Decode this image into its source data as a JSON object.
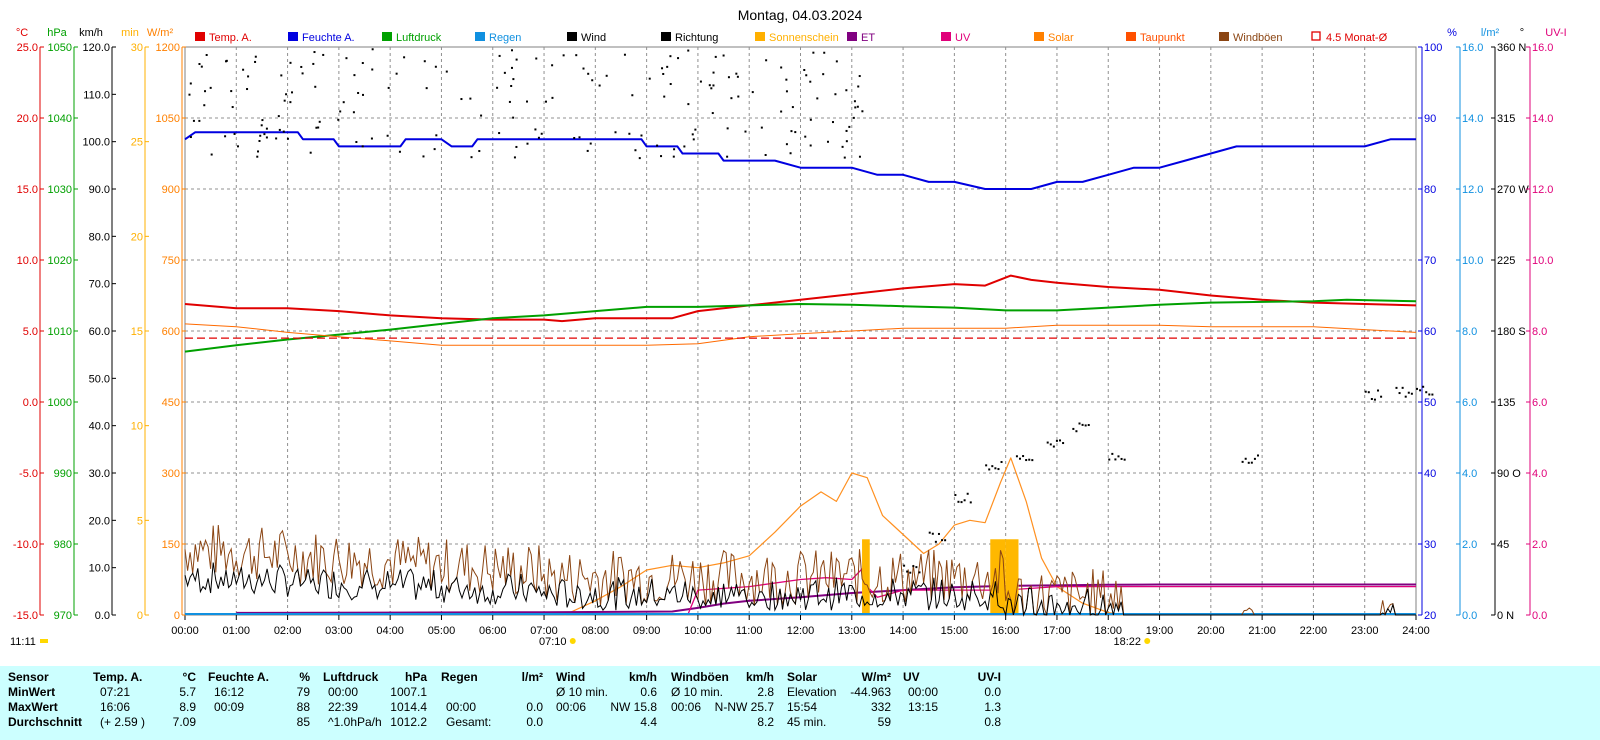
{
  "chart_data": {
    "type": "line",
    "title": "Montag, 04.03.2024",
    "legend": [
      {
        "name": "Temp. A.",
        "color": "#e00000",
        "marker": "box"
      },
      {
        "name": "Feuchte A.",
        "color": "#0000e0",
        "marker": "box"
      },
      {
        "name": "Luftdruck",
        "color": "#00a000",
        "marker": "box"
      },
      {
        "name": "Regen",
        "color": "#1090e0",
        "marker": "box"
      },
      {
        "name": "Wind",
        "color": "#000000",
        "marker": "box"
      },
      {
        "name": "Richtung",
        "color": "#000000",
        "marker": "box"
      },
      {
        "name": "Sonnenschein",
        "color": "#ffb000",
        "marker": "box"
      },
      {
        "name": "ET",
        "color": "#800080",
        "marker": "box"
      },
      {
        "name": "UV",
        "color": "#e0007a",
        "marker": "box"
      },
      {
        "name": "Solar",
        "color": "#ff8000",
        "marker": "box"
      },
      {
        "name": "Taupunkt",
        "color": "#ff5000",
        "marker": "box"
      },
      {
        "name": "Windböen",
        "color": "#8b4513",
        "marker": "box"
      },
      {
        "name": "4.5 Monat-Ø",
        "color": "#e00000",
        "marker": "open"
      }
    ],
    "x_ticks": [
      "00:00",
      "01:00",
      "02:00",
      "03:00",
      "04:00",
      "05:00",
      "06:00",
      "07:00",
      "08:00",
      "09:00",
      "10:00",
      "11:00",
      "12:00",
      "13:00",
      "14:00",
      "15:00",
      "16:00",
      "17:00",
      "18:00",
      "19:00",
      "20:00",
      "21:00",
      "22:00",
      "23:00",
      "24:00"
    ],
    "sunrise_label": "07:10",
    "sunset_label": "18:22",
    "left_corner_label": "11:11",
    "left_axes": [
      {
        "unit": "°C",
        "color": "#e00000",
        "ticks": [
          "25.0",
          "20.0",
          "15.0",
          "10.0",
          "5.0",
          "0.0",
          "-5.0",
          "-10.0",
          "-15.0"
        ]
      },
      {
        "unit": "hPa",
        "color": "#00a000",
        "ticks": [
          "1050",
          "1040",
          "1030",
          "1020",
          "1010",
          "1000",
          "990",
          "980",
          "970"
        ]
      },
      {
        "unit": "km/h",
        "color": "#000000",
        "ticks": [
          "120.0",
          "110.0",
          "100.0",
          "90.0",
          "80.0",
          "70.0",
          "60.0",
          "50.0",
          "40.0",
          "30.0",
          "20.0",
          "10.0",
          "0.0"
        ]
      },
      {
        "unit": "min",
        "color": "#ffb000",
        "ticks": [
          "30",
          "25",
          "20",
          "15",
          "10",
          "5",
          "0"
        ]
      },
      {
        "unit": "W/m²",
        "color": "#ff8000",
        "ticks": [
          "1200",
          "1050",
          "900",
          "750",
          "600",
          "450",
          "300",
          "150",
          "0"
        ]
      }
    ],
    "right_axes": [
      {
        "unit": "%",
        "color": "#0000e0",
        "ticks": [
          "100",
          "90",
          "80",
          "70",
          "60",
          "50",
          "40",
          "30",
          "20"
        ]
      },
      {
        "unit": "l/m²",
        "color": "#1090e0",
        "ticks": [
          "16.0",
          "14.0",
          "12.0",
          "10.0",
          "8.0",
          "6.0",
          "4.0",
          "2.0",
          "0.0"
        ]
      },
      {
        "unit": "°",
        "color": "#000000",
        "ticks": [
          "360 N",
          "315",
          "270 W",
          "225",
          "180 S",
          "135",
          "90 O",
          "45",
          "0 N"
        ]
      },
      {
        "unit": "UV-I",
        "color": "#e0007a",
        "ticks": [
          "16.0",
          "14.0",
          "12.0",
          "10.0",
          "8.0",
          "6.0",
          "4.0",
          "2.0",
          "0.0"
        ]
      }
    ],
    "series": [
      {
        "name": "Temp. A.",
        "unit": "°C",
        "x": [
          0,
          1,
          2,
          3,
          4,
          5,
          6,
          7,
          7.35,
          8,
          9,
          9.5,
          10,
          11,
          12,
          13,
          14,
          15,
          15.6,
          16.1,
          16.5,
          17,
          18,
          19,
          20,
          21,
          22,
          23,
          24
        ],
        "values": [
          6.9,
          6.6,
          6.6,
          6.4,
          6.1,
          5.9,
          5.8,
          5.8,
          5.7,
          5.9,
          5.9,
          5.9,
          6.4,
          6.8,
          7.2,
          7.6,
          8.0,
          8.3,
          8.2,
          8.9,
          8.6,
          8.4,
          8.1,
          7.9,
          7.5,
          7.2,
          7.0,
          6.9,
          6.8
        ]
      },
      {
        "name": "Feuchte A.",
        "unit": "%",
        "x": [
          0,
          0.2,
          2.2,
          2.3,
          2.9,
          3,
          4.2,
          4.3,
          5,
          5.2,
          5.6,
          5.7,
          6,
          7,
          8,
          8.6,
          8.9,
          9,
          9.6,
          9.7,
          10,
          10.4,
          10.5,
          11,
          11.5,
          12,
          12.5,
          13,
          13.5,
          14,
          14.5,
          15,
          15.6,
          16,
          16.5,
          17,
          17.5,
          18,
          18.5,
          19,
          19.5,
          20,
          20.5,
          21,
          22,
          22.5,
          23,
          23.5,
          24
        ],
        "values": [
          87,
          88,
          88,
          87,
          87,
          86,
          86,
          87,
          87,
          86,
          86,
          87,
          87,
          87,
          87,
          87,
          87,
          86,
          86,
          85,
          85,
          85,
          84,
          84,
          84,
          83,
          83,
          83,
          82,
          82,
          81,
          81,
          80,
          80,
          80,
          81,
          81,
          82,
          83,
          83,
          84,
          85,
          86,
          86,
          86,
          86,
          86,
          87,
          87
        ]
      },
      {
        "name": "Luftdruck",
        "unit": "hPa",
        "x": [
          0,
          1,
          2,
          3,
          4,
          5,
          6,
          7,
          8,
          9,
          10,
          11,
          12,
          13,
          14,
          15,
          16,
          17,
          18,
          19,
          20,
          21,
          22,
          22.65,
          24
        ],
        "values": [
          1007.1,
          1008.0,
          1008.8,
          1009.5,
          1010.2,
          1011.0,
          1011.8,
          1012.2,
          1012.8,
          1013.4,
          1013.4,
          1013.6,
          1013.8,
          1013.7,
          1013.5,
          1013.3,
          1012.9,
          1012.9,
          1013.3,
          1013.7,
          1014.0,
          1014.1,
          1014.2,
          1014.4,
          1014.2
        ]
      },
      {
        "name": "Taupunkt",
        "unit": "°C",
        "x": [
          0,
          1,
          2,
          3,
          4,
          5,
          6,
          7,
          8,
          9,
          10,
          11,
          12,
          13,
          14,
          15,
          16,
          17,
          18,
          19,
          20,
          21,
          22,
          23,
          24
        ],
        "values": [
          5.5,
          5.3,
          4.9,
          4.6,
          4.3,
          4.0,
          4.0,
          4.0,
          4.0,
          4.0,
          4.1,
          4.6,
          4.8,
          5.0,
          5.2,
          5.2,
          5.2,
          5.4,
          5.4,
          5.4,
          5.3,
          5.3,
          5.3,
          5.1,
          4.9
        ]
      },
      {
        "name": "4.5 Monat-Ø",
        "unit": "°C",
        "x": [
          0,
          24
        ],
        "values": [
          4.5,
          4.5
        ],
        "style": "dashed"
      },
      {
        "name": "Solar",
        "unit": "W/m²",
        "x": [
          7.4,
          8,
          8.5,
          9,
          9.5,
          10,
          10.5,
          11,
          11.5,
          12,
          12.4,
          12.7,
          13,
          13.3,
          13.6,
          14,
          14.4,
          14.7,
          15,
          15.3,
          15.6,
          15.9,
          16.1,
          16.4,
          16.7,
          17,
          17.5,
          18,
          18.3
        ],
        "values": [
          0,
          30,
          60,
          95,
          105,
          100,
          110,
          125,
          175,
          230,
          260,
          240,
          300,
          290,
          210,
          170,
          130,
          150,
          190,
          200,
          195,
          280,
          332,
          240,
          120,
          60,
          25,
          5,
          0
        ]
      },
      {
        "name": "ET",
        "unit": "l/m²",
        "x": [
          1,
          7,
          9.5,
          10,
          10.5,
          11,
          12,
          13,
          14,
          15,
          16,
          18,
          19,
          20,
          21,
          22,
          23,
          24
        ],
        "values": [
          0.06,
          0.08,
          0.1,
          0.2,
          0.32,
          0.4,
          0.5,
          0.62,
          0.7,
          0.78,
          0.82,
          0.85,
          0.86,
          0.86,
          0.86,
          0.86,
          0.86,
          0.86
        ]
      },
      {
        "name": "UV",
        "unit": "UV-I",
        "x": [
          9.8,
          10,
          11,
          12,
          12.5,
          13,
          13.2,
          13.3,
          13.5,
          14,
          15,
          16,
          17,
          18,
          24
        ],
        "values": [
          0,
          0.7,
          0.8,
          1.0,
          1.05,
          1.0,
          1.3,
          0.8,
          0.5,
          0.7,
          0.7,
          0.7,
          0.8,
          0.8,
          0.8
        ]
      },
      {
        "name": "Sonnenschein",
        "unit": "min",
        "x": [
          13.2,
          15.7,
          16.0
        ],
        "values": [
          4,
          4,
          4
        ],
        "widths": [
          0.15,
          0.3,
          0.25
        ]
      }
    ]
  },
  "stats_table": {
    "rows": [
      "Sensor",
      "MinWert",
      "MaxWert",
      "Durchschnitt"
    ],
    "groups": [
      {
        "name": "Temp. A.",
        "unit": "°C",
        "col1": [
          "07:21",
          "16:06",
          "(+ 2.59 )"
        ],
        "col2": [
          "5.7",
          "8.9",
          "7.09"
        ]
      },
      {
        "name": "Feuchte A.",
        "unit": "%",
        "col1": [
          "16:12",
          "00:09",
          ""
        ],
        "col2": [
          "79",
          "88",
          "85"
        ]
      },
      {
        "name": "Luftdruck",
        "unit": "hPa",
        "col1": [
          "00:00",
          "22:39",
          "^1.0hPa/h"
        ],
        "col2": [
          "1007.1",
          "1014.4",
          "1012.2"
        ]
      },
      {
        "name": "Regen",
        "unit": "l/m²",
        "col1": [
          "",
          "00:00",
          "Gesamt:"
        ],
        "col2": [
          "",
          "0.0",
          "0.0"
        ]
      },
      {
        "name": "Wind",
        "unit": "km/h",
        "col1": [
          "Ø 10 min.",
          "00:06",
          ""
        ],
        "col2": [
          "0.6",
          "NW 15.8",
          "4.4"
        ]
      },
      {
        "name": "Windböen",
        "unit": "km/h",
        "col1": [
          "Ø 10 min.",
          "00:06",
          ""
        ],
        "col2": [
          "2.8",
          "N-NW 25.7",
          "8.2"
        ]
      },
      {
        "name": "Solar",
        "unit": "W/m²",
        "col1": [
          "Elevation",
          "15:54",
          "45 min."
        ],
        "col2": [
          "-44.963",
          "332",
          "59"
        ]
      },
      {
        "name": "UV",
        "unit": "UV-I",
        "col1": [
          "00:00",
          "13:15",
          ""
        ],
        "col2": [
          "0.0",
          "1.3",
          "0.8"
        ]
      }
    ]
  }
}
